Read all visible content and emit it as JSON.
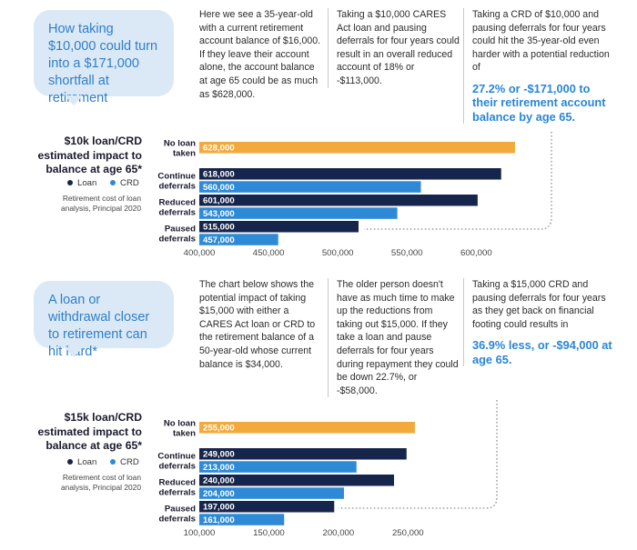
{
  "section1": {
    "callout": "How taking $10,000 could turn into a $171,000 shortfall at retirement",
    "col1": "Here we see a 35-year-old with a current retirement account balance of $16,000. If they leave their account alone, the account balance at age 65 could be as much as $628,000.",
    "col2": "Taking a $10,000 CARES Act loan and pausing deferrals for four years could result in an overall reduced account of 18% or -$113,000.",
    "col3": "Taking a CRD of $10,000 and pausing deferrals for four years could hit the 35-year-old even harder with a potential reduction of",
    "col3_highlight": "27.2% or -$171,000 to their retirement account balance by age 65.",
    "chart_title": "$10k loan/CRD estimated impact to balance at age 65*",
    "legend_loan": "Loan",
    "legend_crd": "CRD",
    "source": "Retirement cost of loan analysis, Principal 2020"
  },
  "section2": {
    "callout": "A loan or withdrawal closer to retirement can hit hard*",
    "col1": "The chart below shows the potential impact of taking $15,000 with either a CARES Act loan or CRD to the retirement balance of a 50-year-old whose current balance is $34,000.",
    "col2": "The older person doesn't have as much time to make up the reductions from taking out $15,000. If they take a loan and pause deferrals for four years during repayment they could be down 22.7%, or -$58,000.",
    "col3": "Taking a $15,000 CRD and pausing deferrals for four years as they get back on financial footing could results in",
    "col3_highlight": "36.9% less, or -$94,000 at age 65.",
    "chart_title": "$15k loan/CRD estimated impact to balance at age 65*",
    "legend_loan": "Loan",
    "legend_crd": "CRD",
    "source": "Retirement cost of loan analysis, Principal 2020"
  },
  "colors": {
    "no_loan": "#f2aa3c",
    "loan": "#16254b",
    "crd": "#2e8ad6",
    "callout_bg": "#dbe9f6",
    "highlight": "#2a86d4"
  },
  "chart_data": [
    {
      "type": "bar",
      "orientation": "horizontal",
      "title": "$10k loan/CRD estimated impact to balance at age 65*",
      "categories": [
        "No loan taken",
        "Continue deferrals",
        "Reduced deferrals",
        "Paused deferrals"
      ],
      "series": [
        {
          "name": "No loan",
          "values": [
            628000,
            null,
            null,
            null
          ],
          "labels": [
            "628,000",
            "",
            "",
            ""
          ]
        },
        {
          "name": "Loan",
          "values": [
            null,
            618000,
            601000,
            515000
          ],
          "labels": [
            "",
            "618,000",
            "601,000",
            "515,000"
          ]
        },
        {
          "name": "CRD",
          "values": [
            null,
            560000,
            543000,
            457000
          ],
          "labels": [
            "",
            "560,000",
            "543,000",
            "457,000"
          ]
        }
      ],
      "xlim": [
        400000,
        630000
      ],
      "ticks": [
        400000,
        450000,
        500000,
        550000,
        600000
      ],
      "tick_labels": [
        "400,000",
        "450,000",
        "500,000",
        "550,000",
        "600,000"
      ],
      "grid": false,
      "legend": "left"
    },
    {
      "type": "bar",
      "orientation": "horizontal",
      "title": "$15k loan/CRD estimated impact to balance at age 65*",
      "categories": [
        "No loan taken",
        "Continue deferrals",
        "Reduced deferrals",
        "Paused deferrals"
      ],
      "series": [
        {
          "name": "No loan",
          "values": [
            255000,
            null,
            null,
            null
          ],
          "labels": [
            "255,000",
            "",
            "",
            ""
          ]
        },
        {
          "name": "Loan",
          "values": [
            null,
            249000,
            240000,
            197000
          ],
          "labels": [
            "",
            "249,000",
            "240,000",
            "197,000"
          ]
        },
        {
          "name": "CRD",
          "values": [
            null,
            213000,
            204000,
            161000
          ],
          "labels": [
            "",
            "213,000",
            "204,000",
            "161,000"
          ]
        }
      ],
      "xlim": [
        100000,
        257000
      ],
      "ticks": [
        100000,
        150000,
        200000,
        250000
      ],
      "tick_labels": [
        "100,000",
        "150,000",
        "200,000",
        "250,000"
      ],
      "grid": false,
      "legend": "left"
    }
  ]
}
